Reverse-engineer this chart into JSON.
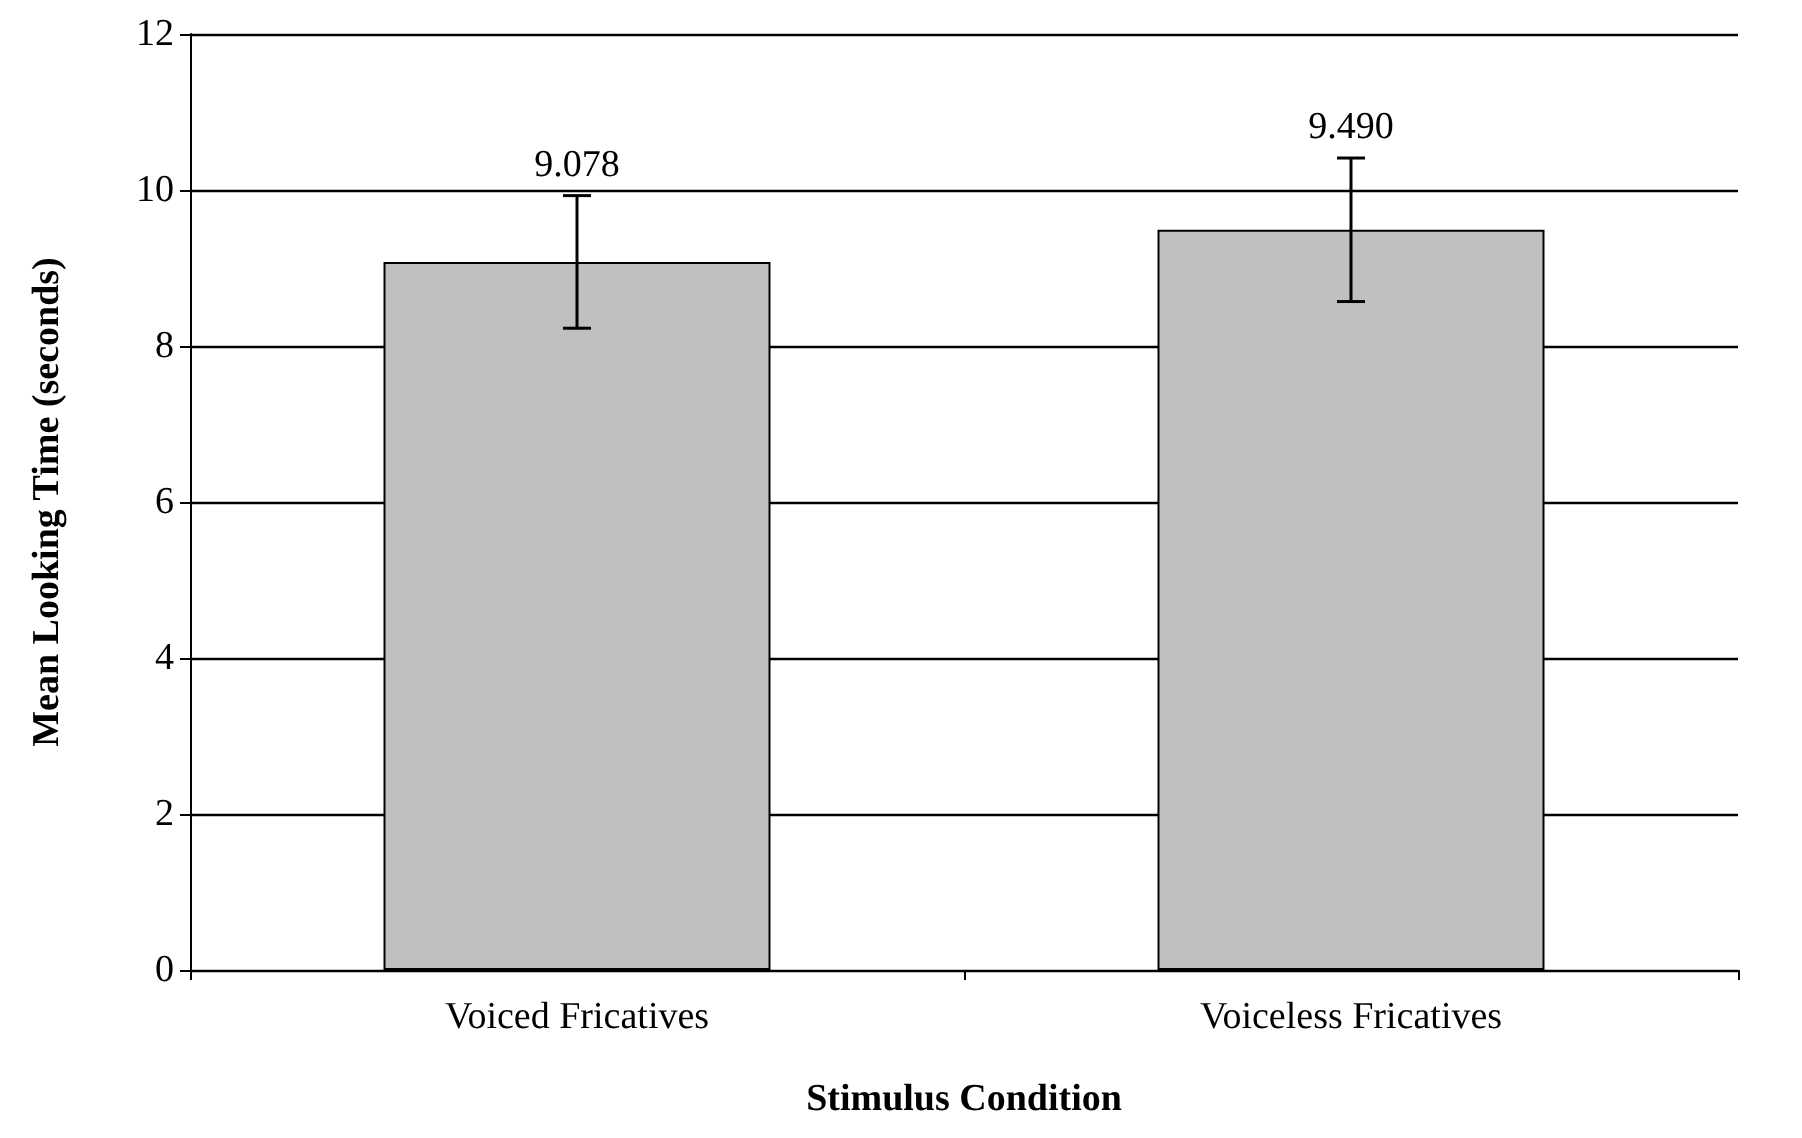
{
  "chart_data": {
    "type": "bar",
    "xlabel": "Stimulus Condition",
    "ylabel": "Mean Looking Time (seconds)",
    "categories": [
      "Voiced Fricatives",
      "Voiceless Fricatives"
    ],
    "values": [
      9.078,
      9.49
    ],
    "value_labels": [
      "9.078",
      "9.490"
    ],
    "errors": [
      0.85,
      0.92
    ],
    "color": "#c0c0c0",
    "ylim": [
      0,
      12
    ],
    "yticks": [
      0,
      2,
      4,
      6,
      8,
      10,
      12
    ],
    "grid": "y"
  }
}
